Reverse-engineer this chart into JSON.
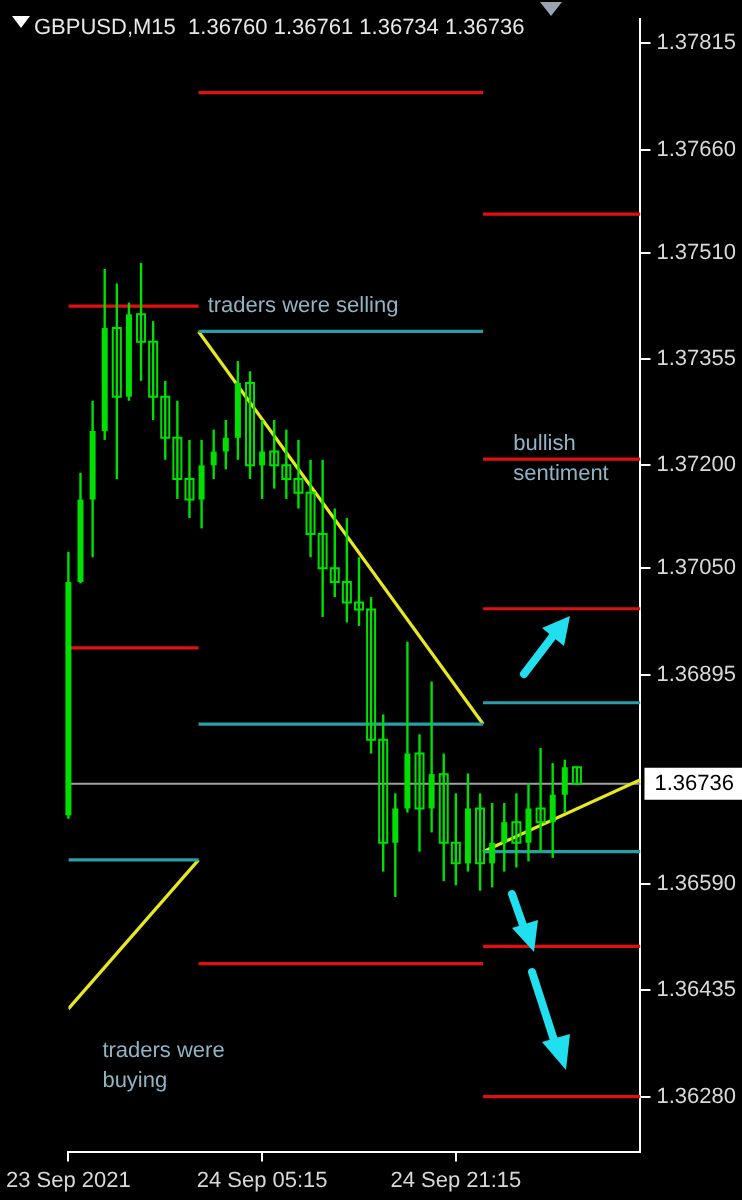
{
  "chart_data": {
    "type": "candlestick",
    "title": "GBPUSD,M15  1.36760 1.36761 1.36734 1.36736",
    "color": "#00e000",
    "x": [
      "2021-09-23T13:15",
      "2021-09-23T14:15",
      "2021-09-23T15:15",
      "2021-09-23T16:15",
      "2021-09-23T17:15",
      "2021-09-23T18:15",
      "2021-09-23T19:15",
      "2021-09-23T20:15",
      "2021-09-23T21:15",
      "2021-09-23T22:15",
      "2021-09-23T23:15",
      "2021-09-24T00:15",
      "2021-09-24T01:15",
      "2021-09-24T02:15",
      "2021-09-24T03:15",
      "2021-09-24T04:15",
      "2021-09-24T05:15",
      "2021-09-24T06:15",
      "2021-09-24T07:15",
      "2021-09-24T08:15",
      "2021-09-24T09:15",
      "2021-09-24T10:15",
      "2021-09-24T11:15",
      "2021-09-24T12:15",
      "2021-09-24T13:15",
      "2021-09-24T14:15",
      "2021-09-24T15:15",
      "2021-09-24T16:15",
      "2021-09-24T17:15",
      "2021-09-24T18:15",
      "2021-09-24T19:15",
      "2021-09-24T20:15",
      "2021-09-24T21:15",
      "2021-09-24T22:15",
      "2021-09-24T23:15",
      "2021-09-25T00:15",
      "2021-09-25T01:15",
      "2021-09-25T02:15",
      "2021-09-25T03:15",
      "2021-09-25T04:15",
      "2021-09-25T05:15",
      "2021-09-25T06:15",
      "2021-09-25T07:15"
    ],
    "ohlc": [
      [
        1.3669,
        1.37074,
        1.36685,
        1.3703
      ],
      [
        1.3703,
        1.37189,
        1.37028,
        1.3715
      ],
      [
        1.3715,
        1.37294,
        1.37066,
        1.3725
      ],
      [
        1.3725,
        1.37486,
        1.37237,
        1.374
      ],
      [
        1.374,
        1.37465,
        1.3718,
        1.373
      ],
      [
        1.373,
        1.37437,
        1.37294,
        1.3742
      ],
      [
        1.3742,
        1.37495,
        1.37323,
        1.3738
      ],
      [
        1.3738,
        1.3741,
        1.37266,
        1.373
      ],
      [
        1.373,
        1.37323,
        1.37208,
        1.3724
      ],
      [
        1.3724,
        1.37294,
        1.37151,
        1.3718
      ],
      [
        1.3718,
        1.37237,
        1.37123,
        1.3715
      ],
      [
        1.3715,
        1.37237,
        1.37108,
        1.372
      ],
      [
        1.372,
        1.37252,
        1.3718,
        1.3722
      ],
      [
        1.3722,
        1.37266,
        1.37194,
        1.3724
      ],
      [
        1.3724,
        1.37352,
        1.37208,
        1.3732
      ],
      [
        1.3732,
        1.37337,
        1.3718,
        1.372
      ],
      [
        1.372,
        1.37266,
        1.37151,
        1.3722
      ],
      [
        1.3722,
        1.37266,
        1.37166,
        1.372
      ],
      [
        1.372,
        1.37252,
        1.37151,
        1.3718
      ],
      [
        1.3718,
        1.37237,
        1.37137,
        1.3716
      ],
      [
        1.3716,
        1.37208,
        1.37066,
        1.371
      ],
      [
        1.371,
        1.37208,
        1.36979,
        1.3705
      ],
      [
        1.3705,
        1.37137,
        1.37008,
        1.3703
      ],
      [
        1.3703,
        1.37123,
        1.36971,
        1.37
      ],
      [
        1.37,
        1.37066,
        1.36966,
        1.3699
      ],
      [
        1.3699,
        1.37008,
        1.3678,
        1.368
      ],
      [
        1.368,
        1.36837,
        1.36608,
        1.3665
      ],
      [
        1.3665,
        1.36722,
        1.36571,
        1.367
      ],
      [
        1.367,
        1.36943,
        1.36694,
        1.3678
      ],
      [
        1.3678,
        1.36808,
        1.36637,
        1.367
      ],
      [
        1.367,
        1.36885,
        1.36665,
        1.3675
      ],
      [
        1.3675,
        1.3678,
        1.36594,
        1.3665
      ],
      [
        1.3665,
        1.36722,
        1.36588,
        1.3662
      ],
      [
        1.3662,
        1.36751,
        1.36608,
        1.367
      ],
      [
        1.367,
        1.36722,
        1.3658,
        1.3662
      ],
      [
        1.3662,
        1.36708,
        1.36585,
        1.3665
      ],
      [
        1.3665,
        1.36708,
        1.36608,
        1.3668
      ],
      [
        1.3668,
        1.36722,
        1.36614,
        1.3665
      ],
      [
        1.3665,
        1.36737,
        1.36623,
        1.367
      ],
      [
        1.367,
        1.36788,
        1.36637,
        1.3668
      ],
      [
        1.3668,
        1.36766,
        1.36628,
        1.3672
      ],
      [
        1.3672,
        1.36771,
        1.36694,
        1.3676
      ],
      [
        1.3676,
        1.36761,
        1.36734,
        1.36736
      ]
    ],
    "series": [
      {
        "type": "line",
        "color": "#e01010",
        "x": [
          "2021-09-24T00:00",
          "2021-09-24T23:30"
        ],
        "values": [
          1.37743,
          1.37743
        ]
      },
      {
        "type": "line",
        "color": "#e01010",
        "x": [
          "2021-09-24T23:30",
          "2021-09-25T12:30"
        ],
        "values": [
          1.37566,
          1.37566
        ]
      },
      {
        "type": "line",
        "color": "#e01010",
        "x": [
          "2021-09-23T13:15",
          "2021-09-24T00:00"
        ],
        "values": [
          1.37432,
          1.37432
        ]
      },
      {
        "type": "line",
        "color": "#e01010",
        "x": [
          "2021-09-24T23:30",
          "2021-09-25T12:30"
        ],
        "values": [
          1.37209,
          1.37209
        ]
      },
      {
        "type": "line",
        "color": "#e01010",
        "x": [
          "2021-09-23T13:15",
          "2021-09-24T00:00"
        ],
        "values": [
          1.36934,
          1.36934
        ]
      },
      {
        "type": "line",
        "color": "#e01010",
        "x": [
          "2021-09-24T23:30",
          "2021-09-25T12:30"
        ],
        "values": [
          1.36991,
          1.36991
        ]
      },
      {
        "type": "line",
        "color": "#e01010",
        "x": [
          "2021-09-24T00:00",
          "2021-09-24T23:30"
        ],
        "values": [
          1.36474,
          1.36474
        ]
      },
      {
        "type": "line",
        "color": "#e01010",
        "x": [
          "2021-09-24T23:30",
          "2021-09-25T12:30"
        ],
        "values": [
          1.36499,
          1.36499
        ]
      },
      {
        "type": "line",
        "color": "#e01010",
        "x": [
          "2021-09-24T23:30",
          "2021-09-25T12:30"
        ],
        "values": [
          1.3628,
          1.3628
        ]
      },
      {
        "type": "line",
        "color": "#2a9ea6",
        "x": [
          "2021-09-24T00:00",
          "2021-09-24T23:30"
        ],
        "values": [
          1.37395,
          1.37395
        ]
      },
      {
        "type": "line",
        "color": "#2a9ea6",
        "x": [
          "2021-09-24T00:00",
          "2021-09-24T23:30"
        ],
        "values": [
          1.36823,
          1.36823
        ]
      },
      {
        "type": "line",
        "color": "#2a9ea6",
        "x": [
          "2021-09-24T23:30",
          "2021-09-25T12:30"
        ],
        "values": [
          1.36854,
          1.36854
        ]
      },
      {
        "type": "line",
        "color": "#2a9ea6",
        "x": [
          "2021-09-23T13:15",
          "2021-09-24T00:00"
        ],
        "values": [
          1.36625,
          1.36625
        ]
      },
      {
        "type": "line",
        "color": "#2a9ea6",
        "x": [
          "2021-09-24T23:30",
          "2021-09-25T12:30"
        ],
        "values": [
          1.36637,
          1.36637
        ]
      },
      {
        "type": "line",
        "color": "#e8e820",
        "x": [
          "2021-09-24T00:00",
          "2021-09-24T23:30"
        ],
        "values": [
          1.37395,
          1.36823
        ]
      },
      {
        "type": "line",
        "color": "#e8e820",
        "x": [
          "2021-09-23T13:15",
          "2021-09-24T00:00"
        ],
        "values": [
          1.36408,
          1.36625
        ]
      },
      {
        "type": "line",
        "color": "#e8e820",
        "x": [
          "2021-09-24T23:30",
          "2021-09-25T12:30"
        ],
        "values": [
          1.36637,
          1.36742
        ]
      }
    ],
    "ref_lines": [
      {
        "axis": "y",
        "value": 1.36736,
        "label": "1.36736",
        "color": "#a0a0a0"
      }
    ],
    "annotations": [
      {
        "text": "traders were selling",
        "x": "2021-09-24T00:45",
        "y": 1.37432
      },
      {
        "text": "bullish\nsentiment",
        "x": "2021-09-25T02:00",
        "y": 1.37209
      },
      "traders were\nbuying"
    ],
    "xlim": [
      "2021-09-23T13:15",
      "2021-09-25T12:30"
    ],
    "xticks": [
      {
        "value": "2021-09-23T13:15",
        "label": "23 Sep 2021"
      },
      {
        "value": "2021-09-24T05:15",
        "label": "24 Sep 05:15"
      },
      {
        "value": "2021-09-24T21:15",
        "label": "24 Sep 21:15"
      }
    ],
    "ylim": [
      1.362,
      1.3785
    ],
    "yticks": [
      1.37815,
      {
        "value": 1.3766,
        "label": "1.37660"
      },
      {
        "value": 1.3751,
        "label": "1.37510"
      },
      1.37355,
      {
        "value": 1.372,
        "label": "1.37200"
      },
      {
        "value": 1.3705,
        "label": "1.37050"
      },
      1.36895,
      {
        "value": 1.3659,
        "label": "1.36590"
      },
      1.36435,
      {
        "value": 1.3628,
        "label": "1.36280"
      }
    ],
    "grid": false,
    "legend": false
  }
}
